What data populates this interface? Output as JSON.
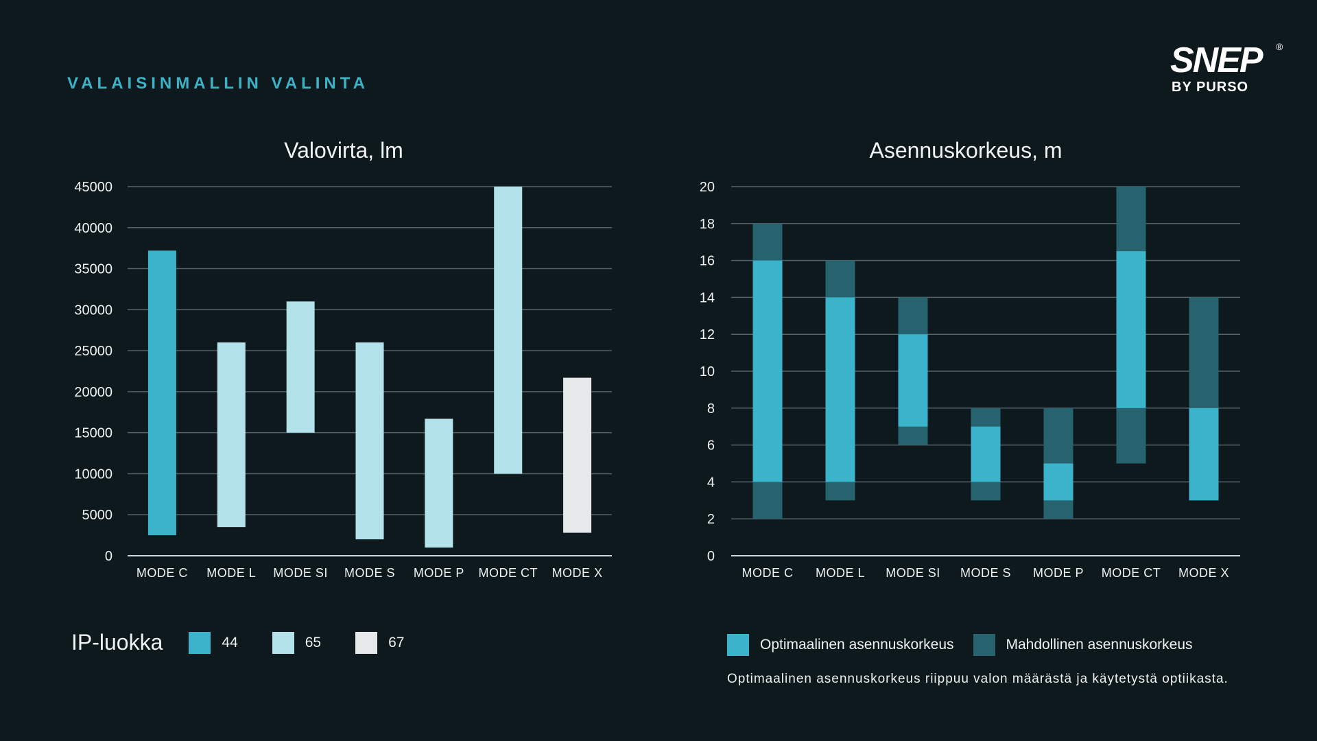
{
  "page": {
    "heading": "VALAISINMALLIN VALINTA",
    "logo_main": "SNEP",
    "logo_sub": "BY PURSO",
    "logo_reg": "®"
  },
  "colors": {
    "ip44": "#3bb4cb",
    "ip65": "#b3e2ea",
    "ip67": "#e6e8e9",
    "optimal": "#3bb4cb",
    "possible": "#27636f",
    "grid": "#55636a",
    "axis": "#cfd6d9"
  },
  "chart_data": [
    {
      "type": "bar",
      "title": "Valovirta, lm",
      "categories": [
        "MODE C",
        "MODE L",
        "MODE SI",
        "MODE S",
        "MODE P",
        "MODE CT",
        "MODE X"
      ],
      "ylim": [
        0,
        45000
      ],
      "yticks": [
        0,
        5000,
        10000,
        15000,
        20000,
        25000,
        30000,
        35000,
        40000,
        45000
      ],
      "grid": true,
      "series": [
        {
          "ranges": [
            [
              2500,
              37200
            ],
            [
              3500,
              26000
            ],
            [
              15000,
              31000
            ],
            [
              2000,
              26000
            ],
            [
              1000,
              16700
            ],
            [
              10000,
              45000
            ],
            [
              2800,
              21700
            ]
          ],
          "ip_class": [
            "44",
            "65",
            "65",
            "65",
            "65",
            "65",
            "67"
          ]
        }
      ]
    },
    {
      "type": "bar",
      "title": "Asennuskorkeus, m",
      "categories": [
        "MODE C",
        "MODE L",
        "MODE SI",
        "MODE S",
        "MODE P",
        "MODE CT",
        "MODE X"
      ],
      "ylim": [
        0,
        20
      ],
      "yticks": [
        0,
        2,
        4,
        6,
        8,
        10,
        12,
        14,
        16,
        18,
        20
      ],
      "grid": true,
      "series": [
        {
          "name": "Mahdollinen asennuskorkeus",
          "ranges": [
            [
              2,
              18
            ],
            [
              3,
              16
            ],
            [
              6,
              14
            ],
            [
              3,
              8
            ],
            [
              2,
              8
            ],
            [
              5,
              20
            ],
            [
              3,
              14
            ]
          ]
        },
        {
          "name": "Optimaalinen asennuskorkeus",
          "ranges": [
            [
              4,
              16
            ],
            [
              4,
              14
            ],
            [
              7,
              12
            ],
            [
              4,
              7
            ],
            [
              3,
              5
            ],
            [
              8,
              16.5
            ],
            [
              3,
              8
            ]
          ]
        }
      ]
    }
  ],
  "legend_ip": {
    "title": "IP-luokka",
    "items": [
      {
        "label": "44",
        "color": "#3bb4cb"
      },
      {
        "label": "65",
        "color": "#b3e2ea"
      },
      {
        "label": "67",
        "color": "#e6e8e9"
      }
    ]
  },
  "legend_height": {
    "items": [
      {
        "label": "Optimaalinen asennuskorkeus",
        "color": "#3bb4cb"
      },
      {
        "label": "Mahdollinen asennuskorkeus",
        "color": "#27636f"
      }
    ]
  },
  "footnote": "Optimaalinen asennuskorkeus riippuu valon määrästä ja käytetystä optiikasta."
}
